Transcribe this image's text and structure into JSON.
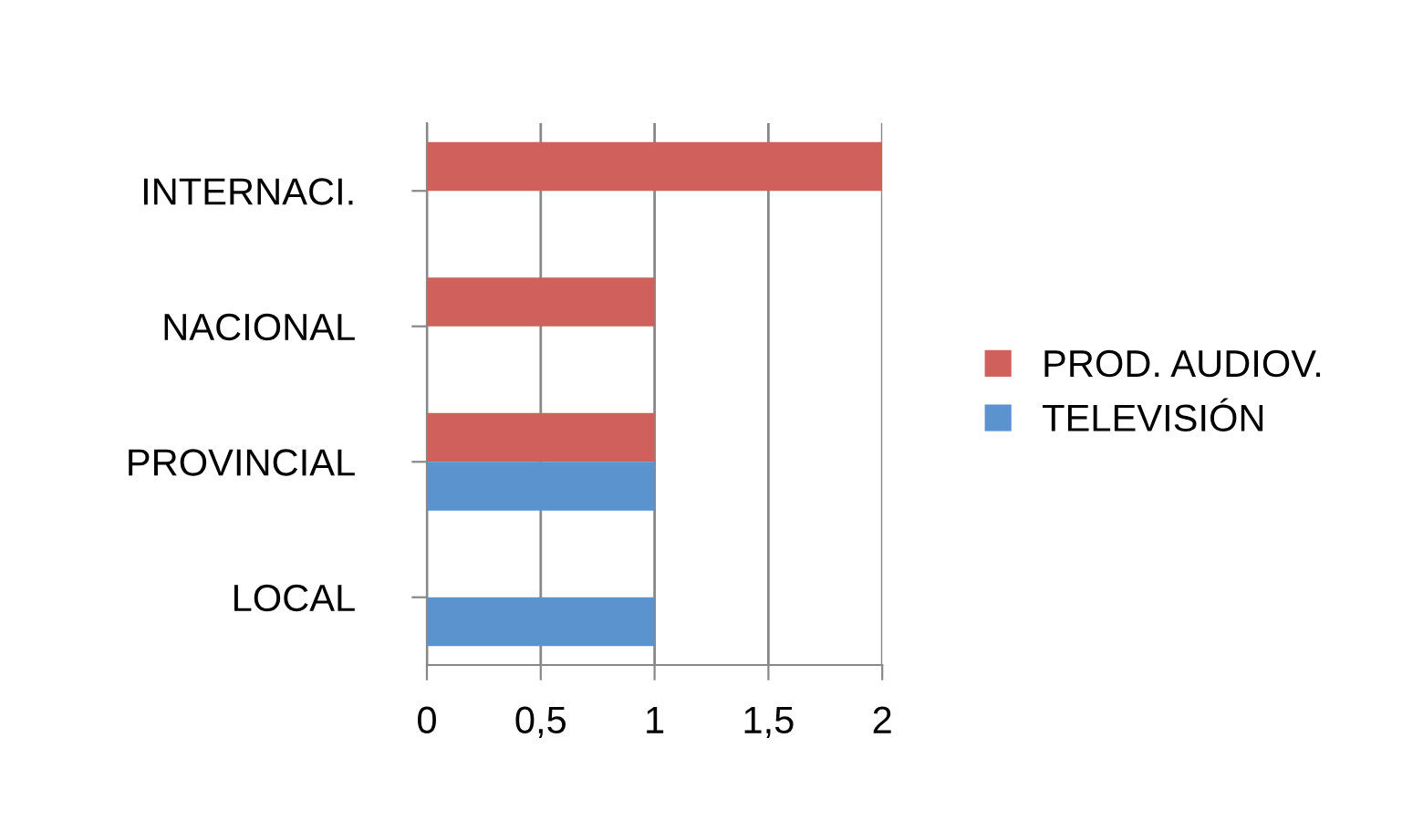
{
  "chart_data": {
    "type": "bar",
    "orientation": "horizontal",
    "categories": [
      "INTERNACI.",
      "NACIONAL",
      "PROVINCIAL",
      "LOCAL"
    ],
    "series": [
      {
        "name": "PROD. AUDIOV.",
        "color": "#d0605b",
        "values": [
          2,
          1,
          1,
          0
        ]
      },
      {
        "name": "TELEVISIÓN",
        "color": "#5b93cf",
        "values": [
          0,
          0,
          1,
          1
        ]
      }
    ],
    "xlim": [
      0,
      2
    ],
    "xticks": [
      0,
      {
        "value": 0.5,
        "label": "0,5"
      },
      1,
      {
        "value": 1.5,
        "label": "1,5"
      },
      2
    ],
    "grid": "x",
    "legend": "right"
  }
}
